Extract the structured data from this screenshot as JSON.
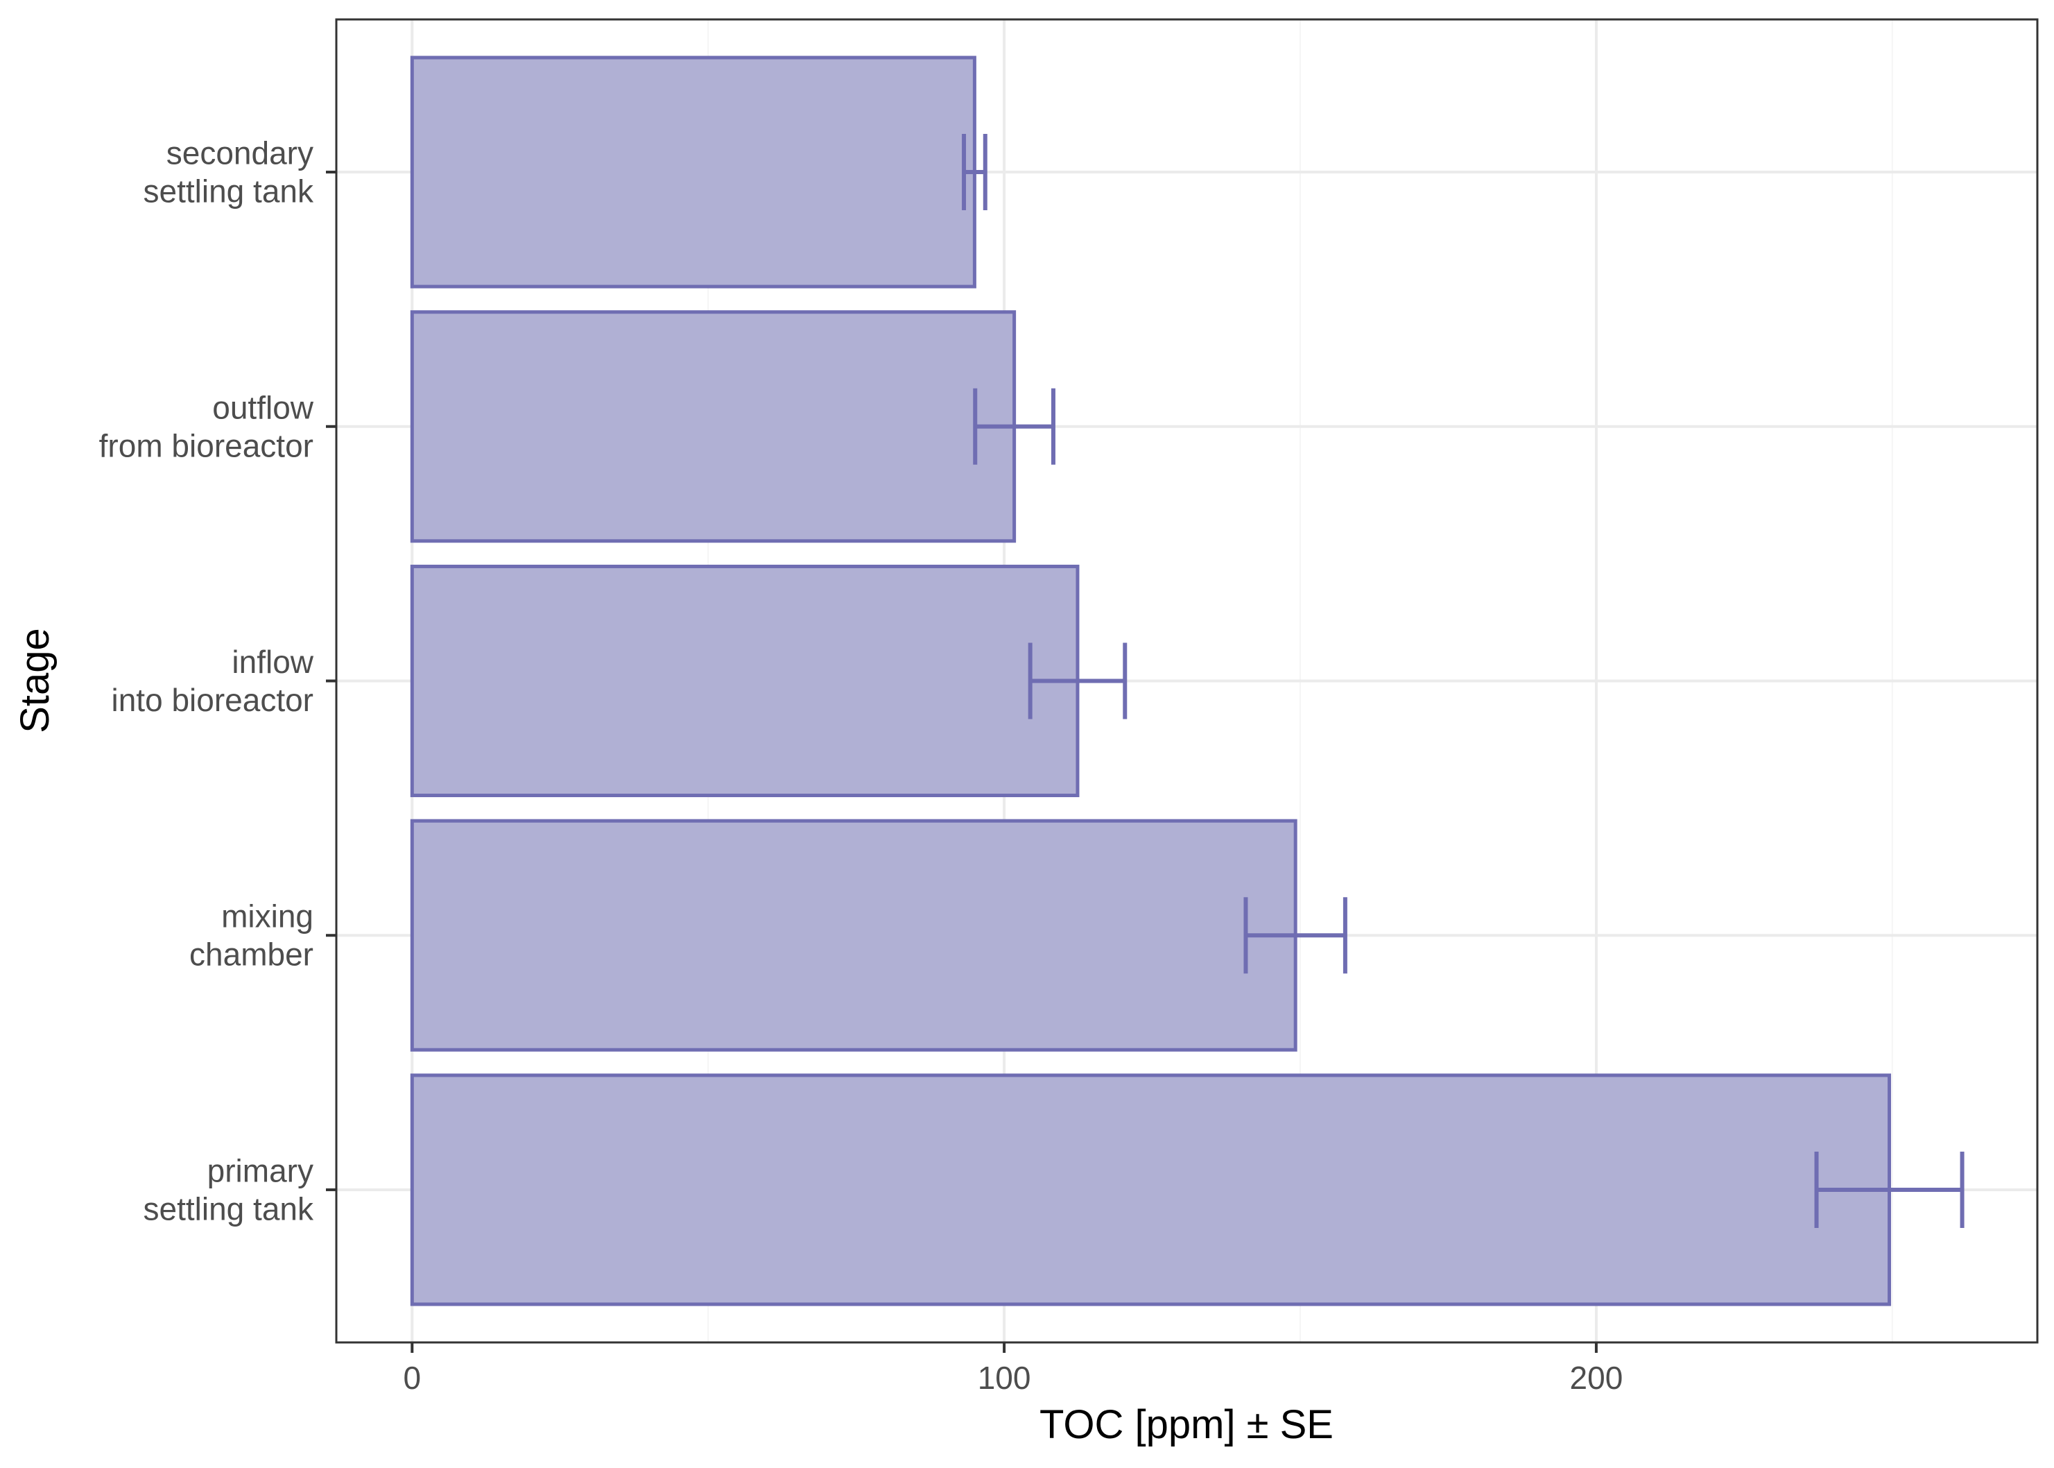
{
  "chart_data": {
    "type": "bar",
    "orientation": "horizontal",
    "title": "",
    "xlabel": "TOC [ppm] ± SE",
    "ylabel": "Stage",
    "xlim": [
      -12.8,
      274.5
    ],
    "x_ticks": [
      0,
      100,
      200
    ],
    "grid": true,
    "legend": "none",
    "categories": [
      [
        "secondary",
        "settling tank"
      ],
      [
        "outflow",
        "from bioreactor"
      ],
      [
        "inflow",
        "into bioreactor"
      ],
      [
        "mixing",
        "chamber"
      ],
      [
        "primary",
        "settling tank"
      ]
    ],
    "values": [
      95,
      101.7,
      112.4,
      149.2,
      249.5
    ],
    "errors": [
      1.8,
      6.6,
      8.0,
      8.4,
      12.3
    ],
    "colors": {
      "bar_fill": "#b0b0d4",
      "bar_stroke": "#6f6db2",
      "error_bar": "#6f6db2",
      "grid_major": "#ebebeb",
      "grid_minor": "#f5f5f5",
      "panel_border": "#333333",
      "tick_mark": "#333333"
    }
  }
}
